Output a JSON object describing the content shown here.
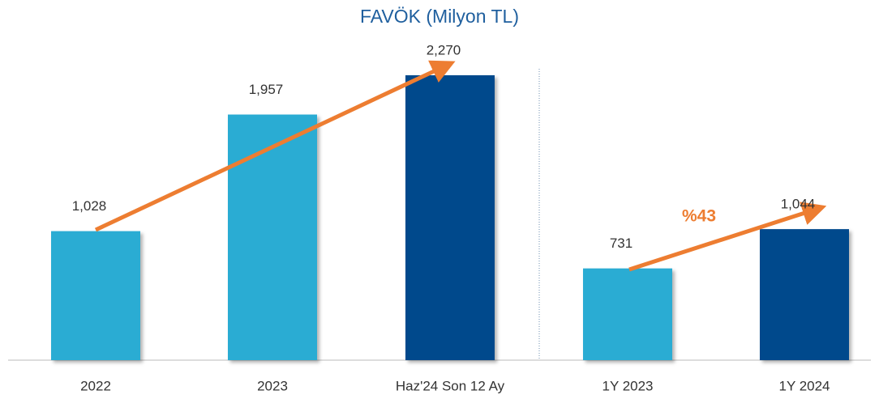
{
  "chart_data": {
    "type": "bar",
    "title": "FAVÖK (Milyon TL)",
    "categories": [
      "2022",
      "2023",
      "Haz'24 Son 12 Ay",
      "1Y 2023",
      "1Y 2024"
    ],
    "values": [
      1028,
      1957,
      2270,
      731,
      1044
    ],
    "value_labels": [
      "1,028",
      "1,957",
      "2,270",
      "731",
      "1,044"
    ],
    "colors": [
      "#29acd3",
      "#29acd3",
      "#004a8c",
      "#29acd3",
      "#004a8c"
    ],
    "annotations": [
      "%43"
    ]
  }
}
